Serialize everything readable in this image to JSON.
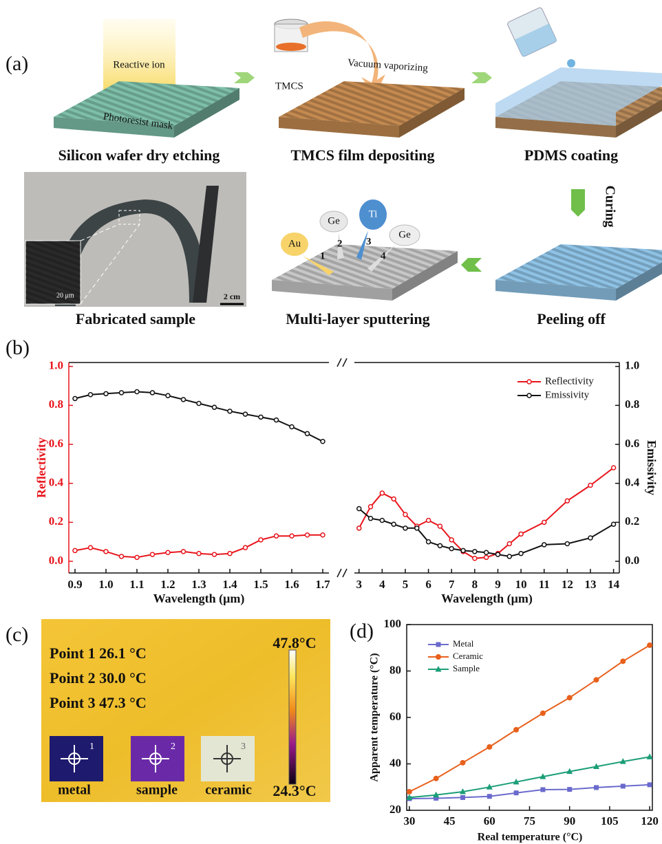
{
  "panel_a": {
    "label": "(a)",
    "steps": [
      "Silicon wafer dry etching",
      "TMCS film depositing",
      "PDMS coating",
      "Curing",
      "Peeling off",
      "Multi-layer sputtering",
      "Fabricated sample"
    ],
    "reactive_ion": "Reactive ion",
    "mask": "Photoresist mask",
    "tmcs": "TMCS",
    "vacuum": "Vacuum vaporizing",
    "targets": [
      {
        "name": "Au",
        "number": "1"
      },
      {
        "name": "Ge",
        "number": "2"
      },
      {
        "name": "Ti",
        "number": "3"
      },
      {
        "name": "Ge",
        "number": "4"
      }
    ],
    "sem_scale": "20 μm",
    "photo_scale": "2 cm"
  },
  "chart_data": [
    {
      "type": "line",
      "label": "(b)",
      "ylabel": "Reflectivity",
      "y2label": "Emissivity",
      "ylim": [
        -0.06,
        1.02
      ],
      "yticks": [
        {
          "value": 0,
          "label": "0.0"
        },
        0.2,
        0.4,
        0.6,
        0.8,
        {
          "value": 1,
          "label": "1.0"
        }
      ],
      "y2lim": [
        -0.06,
        1.02
      ],
      "y2ticks": [
        {
          "value": 0,
          "label": "0.0"
        },
        0.2,
        0.4,
        0.6,
        0.8,
        {
          "value": 1,
          "label": "1.0"
        }
      ],
      "series": [
        {
          "name": "Reflectivity",
          "color": "#e8141b"
        },
        {
          "name": "Emissivity",
          "color": "#111111",
          "axis": "y2"
        }
      ],
      "legend": "upper right",
      "segments": [
        {
          "xlabel": "Wavelength (μm)",
          "xlim": [
            0.88,
            1.72
          ],
          "xticks": [
            0.9,
            {
              "value": 1,
              "label": "1.0"
            },
            1.1,
            1.2,
            1.3,
            1.4,
            1.5,
            1.6,
            1.7
          ],
          "x": [
            0.9,
            0.95,
            1.0,
            1.05,
            1.1,
            1.15,
            1.2,
            1.25,
            1.3,
            1.35,
            1.4,
            1.45,
            1.5,
            1.55,
            1.6,
            1.65,
            1.7
          ],
          "values": [
            [
              0.055,
              0.07,
              0.05,
              0.025,
              0.02,
              0.035,
              0.045,
              0.05,
              0.04,
              0.035,
              0.04,
              0.07,
              0.11,
              0.13,
              0.13,
              0.135,
              0.135
            ],
            [
              0.835,
              0.855,
              0.86,
              0.865,
              0.87,
              0.865,
              0.85,
              0.83,
              0.81,
              0.79,
              0.77,
              0.755,
              0.74,
              0.725,
              0.69,
              0.655,
              0.615
            ]
          ]
        },
        {
          "xlabel": "Wavelength (μm)",
          "xlim": [
            2.8,
            14.25
          ],
          "xticks": [
            3,
            4,
            5,
            6,
            7,
            8,
            9,
            10,
            11,
            12,
            13,
            14
          ],
          "x": [
            3,
            3.5,
            4,
            4.5,
            5,
            5.5,
            6,
            6.5,
            7,
            7.5,
            8,
            8.5,
            9,
            9.5,
            10,
            11,
            12,
            13,
            14
          ],
          "values": [
            [
              0.17,
              0.28,
              0.35,
              0.32,
              0.24,
              0.18,
              0.21,
              0.18,
              0.11,
              0.05,
              0.015,
              0.02,
              0.04,
              0.09,
              0.14,
              0.2,
              0.31,
              0.39,
              0.48
            ],
            [
              0.27,
              0.22,
              0.21,
              0.19,
              0.17,
              0.17,
              0.1,
              0.08,
              0.065,
              0.055,
              0.05,
              0.045,
              0.035,
              0.025,
              0.04,
              0.085,
              0.09,
              0.12,
              0.19
            ]
          ]
        }
      ]
    },
    {
      "type": "line",
      "label": "(d)",
      "xlabel": "Real temperature (°C)",
      "ylabel": "Apparent temperature (°C)",
      "xlim": [
        29,
        121
      ],
      "xticks": [
        30,
        45,
        60,
        75,
        90,
        105,
        120
      ],
      "ylim": [
        20,
        100
      ],
      "yticks": [
        20,
        40,
        60,
        80,
        100
      ],
      "legend": "upper left",
      "x": [
        30,
        40,
        50,
        60,
        70,
        80,
        90,
        100,
        110,
        120
      ],
      "series": [
        {
          "name": "Metal",
          "color": "#6a6acd",
          "marker": "square",
          "values": [
            25,
            25.2,
            25.5,
            26,
            27.5,
            28.9,
            29,
            29.8,
            30.4,
            31
          ]
        },
        {
          "name": "Ceramic",
          "color": "#e8601c",
          "marker": "circle",
          "values": [
            28,
            33.7,
            40.5,
            47.3,
            54.7,
            61.8,
            68.5,
            76.2,
            84.2,
            91.1
          ]
        },
        {
          "name": "Sample",
          "color": "#1a9e77",
          "marker": "triangle",
          "values": [
            25.5,
            26.6,
            28,
            30,
            32.2,
            34.5,
            36.7,
            38.8,
            41,
            43
          ]
        }
      ]
    }
  ],
  "panel_c": {
    "label": "(c)",
    "points": [
      "Point 1 26.1 °C",
      "Point 2 30.0 °C",
      "Point 3 47.3 °C"
    ],
    "scale_max": "47.8°C",
    "scale_min": "24.3°C",
    "samples": [
      {
        "name": "metal",
        "number": "1"
      },
      {
        "name": "sample",
        "number": "2"
      },
      {
        "name": "ceramic",
        "number": "3"
      }
    ]
  }
}
